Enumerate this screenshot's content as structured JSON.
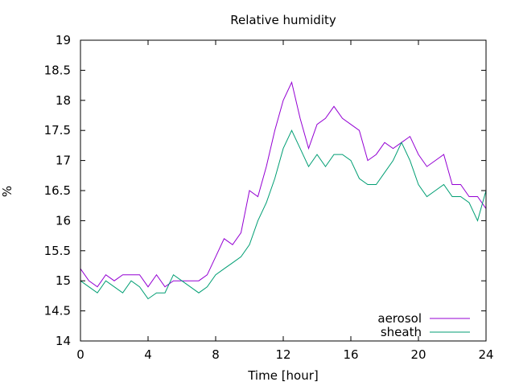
{
  "chart_data": {
    "type": "line",
    "title": "Relative humidity",
    "xlabel": "Time [hour]",
    "ylabel": "%",
    "xlim": [
      0,
      24
    ],
    "ylim": [
      14,
      19
    ],
    "xticks": [
      0,
      4,
      8,
      12,
      16,
      20,
      24
    ],
    "yticks": [
      14,
      14.5,
      15,
      15.5,
      16,
      16.5,
      17,
      17.5,
      18,
      18.5,
      19
    ],
    "grid": false,
    "legend_position": "bottom-right",
    "series": [
      {
        "name": "aerosol",
        "color": "#9400d3",
        "x": [
          0,
          0.5,
          1,
          1.5,
          2,
          2.5,
          3,
          3.5,
          4,
          4.5,
          5,
          5.5,
          6,
          6.5,
          7,
          7.5,
          8,
          8.5,
          9,
          9.5,
          10,
          10.5,
          11,
          11.5,
          12,
          12.5,
          13,
          13.5,
          14,
          14.5,
          15,
          15.5,
          16,
          16.5,
          17,
          17.5,
          18,
          18.5,
          19,
          19.5,
          20,
          20.5,
          21,
          21.5,
          22,
          22.5,
          23,
          23.5,
          24
        ],
        "values": [
          15.2,
          15.0,
          14.9,
          15.1,
          15.0,
          15.1,
          15.1,
          15.1,
          14.9,
          15.1,
          14.9,
          15.0,
          15.0,
          15.0,
          15.0,
          15.1,
          15.4,
          15.7,
          15.6,
          15.8,
          16.5,
          16.4,
          16.9,
          17.5,
          18.0,
          18.3,
          17.7,
          17.2,
          17.6,
          17.7,
          17.9,
          17.7,
          17.6,
          17.5,
          17.0,
          17.1,
          17.3,
          17.2,
          17.3,
          17.4,
          17.1,
          16.9,
          17.0,
          17.1,
          16.6,
          16.6,
          16.4,
          16.4,
          16.2
        ]
      },
      {
        "name": "sheath",
        "color": "#009e73",
        "x": [
          0,
          0.5,
          1,
          1.5,
          2,
          2.5,
          3,
          3.5,
          4,
          4.5,
          5,
          5.5,
          6,
          6.5,
          7,
          7.5,
          8,
          8.5,
          9,
          9.5,
          10,
          10.5,
          11,
          11.5,
          12,
          12.5,
          13,
          13.5,
          14,
          14.5,
          15,
          15.5,
          16,
          16.5,
          17,
          17.5,
          18,
          18.5,
          19,
          19.5,
          20,
          20.5,
          21,
          21.5,
          22,
          22.5,
          23,
          23.5,
          24
        ],
        "values": [
          15.0,
          14.9,
          14.8,
          15.0,
          14.9,
          14.8,
          15.0,
          14.9,
          14.7,
          14.8,
          14.8,
          15.1,
          15.0,
          14.9,
          14.8,
          14.9,
          15.1,
          15.2,
          15.3,
          15.4,
          15.6,
          16.0,
          16.3,
          16.7,
          17.2,
          17.5,
          17.2,
          16.9,
          17.1,
          16.9,
          17.1,
          17.1,
          17.0,
          16.7,
          16.6,
          16.6,
          16.8,
          17.0,
          17.3,
          17.0,
          16.6,
          16.4,
          16.5,
          16.6,
          16.4,
          16.4,
          16.3,
          16.0,
          16.5
        ]
      }
    ]
  }
}
